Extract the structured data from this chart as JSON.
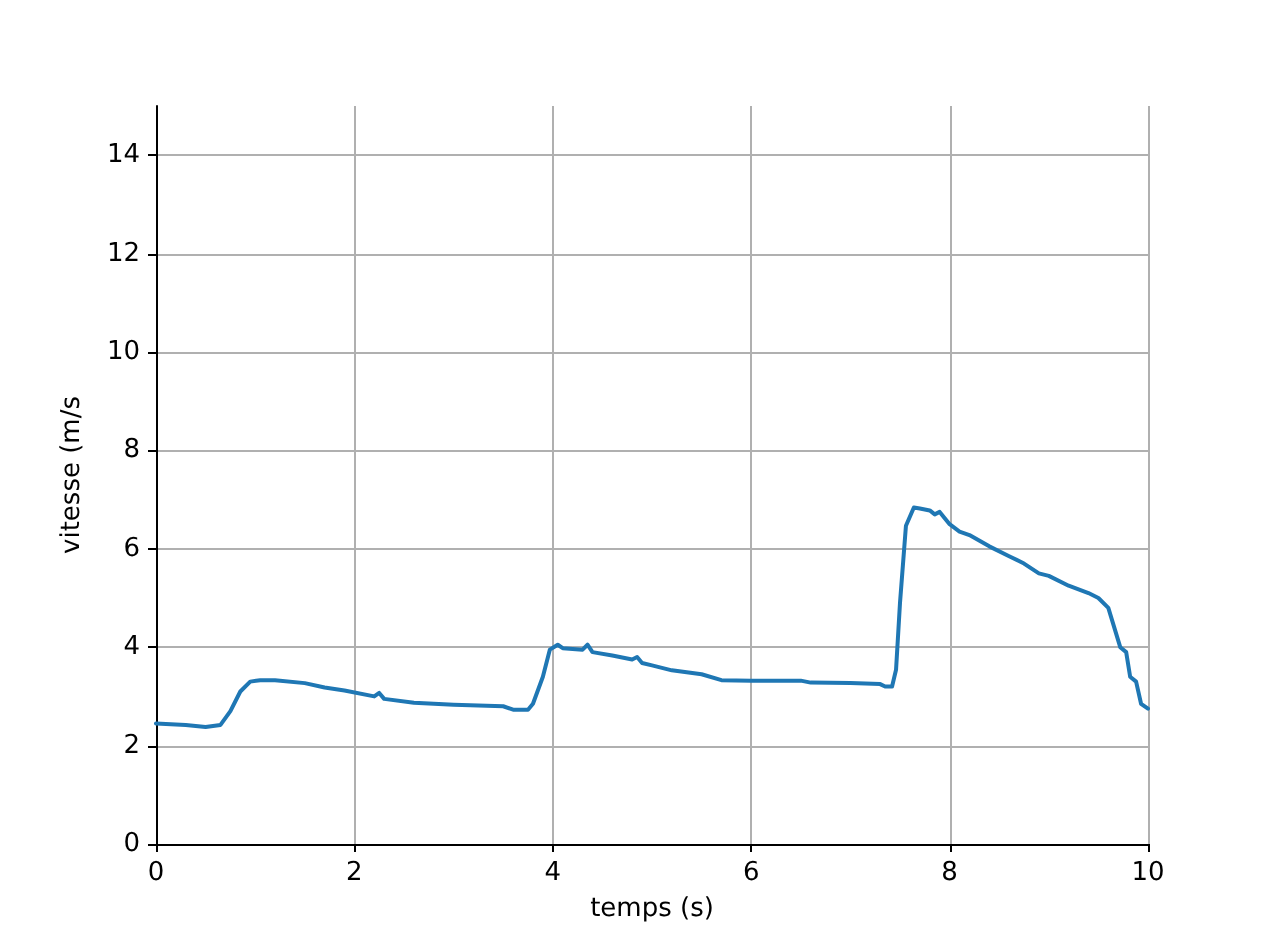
{
  "chart_data": {
    "type": "line",
    "xlabel": "temps (s)",
    "ylabel": "vitesse (m/s",
    "xlim": [
      0,
      10
    ],
    "ylim": [
      0,
      15
    ],
    "xticks": [
      0,
      2,
      4,
      6,
      8,
      10
    ],
    "yticks": [
      0,
      2,
      4,
      6,
      8,
      10,
      12,
      14
    ],
    "grid": true,
    "marker": "none",
    "line_style": "solid",
    "series": [
      {
        "color": "#1f77b4",
        "x": [
          0,
          0.3,
          0.5,
          0.65,
          0.75,
          0.85,
          0.95,
          1.05,
          1.2,
          1.5,
          1.7,
          1.9,
          2.2,
          2.25,
          2.3,
          2.6,
          2.8,
          3.0,
          3.5,
          3.6,
          3.75,
          3.8,
          3.9,
          3.97,
          4.05,
          4.1,
          4.3,
          4.35,
          4.4,
          4.6,
          4.8,
          4.85,
          4.9,
          5.0,
          5.2,
          5.5,
          5.7,
          6.0,
          6.5,
          6.6,
          7.0,
          7.3,
          7.35,
          7.42,
          7.46,
          7.5,
          7.56,
          7.64,
          7.7,
          7.8,
          7.85,
          7.9,
          8.0,
          8.1,
          8.2,
          8.4,
          8.6,
          8.75,
          8.9,
          9.0,
          9.2,
          9.4,
          9.5,
          9.6,
          9.72,
          9.78,
          9.82,
          9.88,
          9.93,
          10
        ],
        "values": [
          2.45,
          2.42,
          2.38,
          2.42,
          2.7,
          3.1,
          3.3,
          3.33,
          3.33,
          3.27,
          3.18,
          3.12,
          3.0,
          3.07,
          2.95,
          2.87,
          2.85,
          2.83,
          2.8,
          2.73,
          2.73,
          2.85,
          3.4,
          3.95,
          4.05,
          3.98,
          3.95,
          4.05,
          3.9,
          3.83,
          3.75,
          3.8,
          3.68,
          3.63,
          3.53,
          3.45,
          3.33,
          3.32,
          3.32,
          3.28,
          3.27,
          3.25,
          3.2,
          3.2,
          3.54,
          4.9,
          6.47,
          6.84,
          6.82,
          6.78,
          6.7,
          6.75,
          6.5,
          6.35,
          6.28,
          6.05,
          5.85,
          5.7,
          5.5,
          5.45,
          5.25,
          5.1,
          5.0,
          4.8,
          4.0,
          3.9,
          3.4,
          3.3,
          2.85,
          2.75
        ]
      }
    ]
  }
}
